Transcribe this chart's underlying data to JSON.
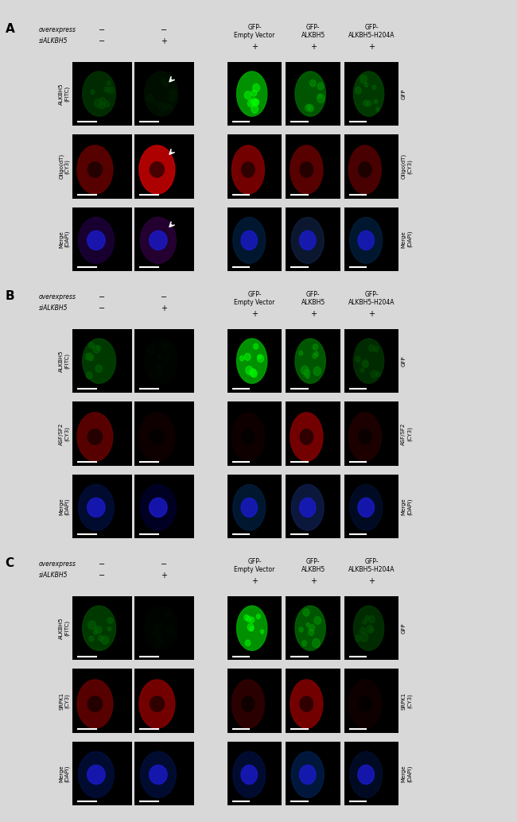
{
  "background_color": "#f0f0f0",
  "panel_bg": "#000000",
  "fig_width": 6.5,
  "fig_height": 10.34,
  "panels": [
    "A",
    "B",
    "C"
  ],
  "panel_A": {
    "label": "A",
    "left_header_row1": "overexpress",
    "left_header_row2": "siALKBH5",
    "left_cols_sign": [
      "−",
      "−",
      "+"
    ],
    "right_col_headers": [
      "GFP-\nEmpty Vector",
      "GFP-\nALKBH5",
      "GFP-\nALKBH5-H204A"
    ],
    "right_row_sign": [
      "+",
      "+",
      "+"
    ],
    "left_row_labels": [
      "ALKBH5\n(FITC)",
      "Oligo(dT)\n(CY3)",
      "Merge\n(DAPI)"
    ],
    "right_row_labels": [
      "GFP",
      "Oligo(dT)\n(CY3)",
      "Merge\n(DAPI)"
    ],
    "left_img_colors": [
      [
        "#003300",
        "#001100"
      ],
      [
        "#660000",
        "#cc0000"
      ],
      [
        "#220044",
        "#330044"
      ]
    ],
    "right_img_colors": [
      [
        "#00aa00",
        "#006600",
        "#004400"
      ],
      [
        "#880000",
        "#660000",
        "#550000"
      ],
      [
        "#002244",
        "#112244",
        "#002244"
      ]
    ]
  },
  "panel_B": {
    "label": "B",
    "left_row_labels": [
      "ALKBH5\n(FITC)",
      "ASF/SF2\n(CY3)",
      "Merge\n(DAPI)"
    ],
    "right_row_labels": [
      "GFP",
      "ASF/SF2\n(CY3)",
      "Merge\n(DAPI)"
    ],
    "left_img_colors": [
      [
        "#004400",
        "#000500"
      ],
      [
        "#660000",
        "#110000"
      ],
      [
        "#001144",
        "#000033"
      ]
    ],
    "right_img_colors": [
      [
        "#00aa00",
        "#006600",
        "#003300"
      ],
      [
        "#110000",
        "#880000",
        "#220000"
      ],
      [
        "#002244",
        "#112255",
        "#001133"
      ]
    ]
  },
  "panel_C": {
    "label": "C",
    "left_row_labels": [
      "ALKBH5\n(FITC)",
      "SRPK1\n(CY3)",
      "Merge\n(DAPI)"
    ],
    "right_row_labels": [
      "GFP",
      "SRPK1\n(CY3)",
      "Merge\n(DAPI)"
    ],
    "left_img_colors": [
      [
        "#004400",
        "#000500"
      ],
      [
        "#660000",
        "#880000"
      ],
      [
        "#001144",
        "#001144"
      ]
    ],
    "right_img_colors": [
      [
        "#00aa00",
        "#006600",
        "#003300"
      ],
      [
        "#330000",
        "#880000",
        "#110000"
      ],
      [
        "#001144",
        "#002255",
        "#001133"
      ]
    ]
  },
  "text_color": "#000000",
  "white": "#ffffff",
  "gray_bg": "#d8d8d8"
}
